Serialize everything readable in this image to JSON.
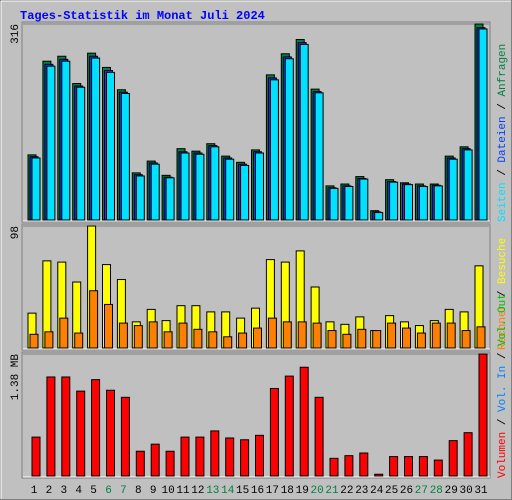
{
  "chart_data": [
    {
      "type": "bar",
      "title": "Tages-Statistik im Monat Juli 2024",
      "legend_separator": " / ",
      "ylim": [
        0,
        316
      ],
      "yticks": [
        316
      ],
      "series": [
        {
          "name": "Seiten",
          "color": "#00e0ff",
          "values": [
            100,
            248,
            256,
            214,
            261,
            238,
            204,
            71,
            90,
            68,
            108,
            106,
            118,
            98,
            88,
            108,
            226,
            260,
            283,
            205,
            51,
            54,
            66,
            12,
            61,
            57,
            54,
            55,
            98,
            113,
            308
          ]
        },
        {
          "name": "Dateien",
          "color": "#0040ff",
          "values": [
            102,
            251,
            259,
            216,
            264,
            241,
            206,
            73,
            92,
            69,
            110,
            108,
            120,
            100,
            90,
            110,
            229,
            263,
            286,
            207,
            52,
            55,
            67,
            13,
            62,
            58,
            55,
            56,
            100,
            115,
            310
          ]
        },
        {
          "name": "Anfragen",
          "color": "#008040",
          "values": [
            105,
            256,
            264,
            220,
            269,
            246,
            210,
            76,
            95,
            72,
            115,
            111,
            123,
            103,
            93,
            113,
            234,
            268,
            291,
            211,
            55,
            58,
            70,
            15,
            65,
            60,
            58,
            58,
            103,
            118,
            316
          ]
        }
      ]
    },
    {
      "type": "bar",
      "legend_separator": " / ",
      "ylim": [
        0,
        98
      ],
      "yticks": [
        98
      ],
      "series": [
        {
          "name": "Rechner",
          "color": "#ff8000",
          "values": [
            11,
            13,
            24,
            12,
            46,
            35,
            20,
            18,
            21,
            13,
            20,
            15,
            13,
            9,
            12,
            16,
            24,
            21,
            21,
            20,
            14,
            11,
            15,
            14,
            20,
            16,
            12,
            20,
            20,
            14,
            17
          ]
        },
        {
          "name": "Besuche",
          "color": "#ffff00",
          "values": [
            28,
            70,
            69,
            53,
            98,
            67,
            55,
            21,
            31,
            22,
            34,
            34,
            29,
            29,
            24,
            32,
            71,
            69,
            78,
            49,
            21,
            19,
            25,
            14,
            26,
            21,
            18,
            22,
            31,
            29,
            66
          ]
        }
      ]
    },
    {
      "type": "bar",
      "legend_separator": " / ",
      "ylim": [
        0,
        1.38
      ],
      "yticks": [
        {
          "value": 1.38,
          "label": "1.38 MB"
        }
      ],
      "categories": [
        "1",
        "2",
        "3",
        "4",
        "5",
        "6",
        "7",
        "8",
        "9",
        "10",
        "11",
        "12",
        "13",
        "14",
        "15",
        "16",
        "17",
        "18",
        "19",
        "20",
        "21",
        "22",
        "23",
        "24",
        "25",
        "26",
        "27",
        "28",
        "29",
        "30",
        "31"
      ],
      "category_colors": [
        "#000000",
        "#000000",
        "#000000",
        "#000000",
        "#000000",
        "#008040",
        "#008040",
        "#000000",
        "#000000",
        "#000000",
        "#000000",
        "#000000",
        "#008040",
        "#008040",
        "#000000",
        "#000000",
        "#000000",
        "#000000",
        "#000000",
        "#008040",
        "#008040",
        "#000000",
        "#000000",
        "#000000",
        "#000000",
        "#000000",
        "#008040",
        "#008040",
        "#000000",
        "#000000",
        "#000000"
      ],
      "series": [
        {
          "name": "Volumen",
          "color": "#ff0000",
          "values": [
            0.44,
            1.12,
            1.12,
            0.96,
            1.09,
            0.97,
            0.89,
            0.28,
            0.36,
            0.28,
            0.44,
            0.44,
            0.51,
            0.43,
            0.41,
            0.46,
            0.99,
            1.13,
            1.23,
            0.89,
            0.2,
            0.23,
            0.26,
            0.02,
            0.22,
            0.22,
            0.22,
            0.18,
            0.4,
            0.49,
            1.38
          ]
        },
        {
          "name": "Vol. In",
          "color": "#0080ff",
          "values": [
            0,
            0,
            0,
            0,
            0,
            0,
            0,
            0,
            0,
            0,
            0,
            0,
            0,
            0,
            0,
            0,
            0,
            0,
            0,
            0,
            0,
            0,
            0,
            0,
            0,
            0,
            0,
            0,
            0,
            0,
            0
          ]
        },
        {
          "name": "Vol. Out",
          "color": "#00c000",
          "values": [
            0,
            0,
            0,
            0,
            0,
            0,
            0,
            0,
            0,
            0,
            0,
            0,
            0,
            0,
            0,
            0,
            0,
            0,
            0,
            0,
            0,
            0,
            0,
            0,
            0,
            0,
            0,
            0,
            0,
            0,
            0
          ]
        }
      ]
    }
  ]
}
